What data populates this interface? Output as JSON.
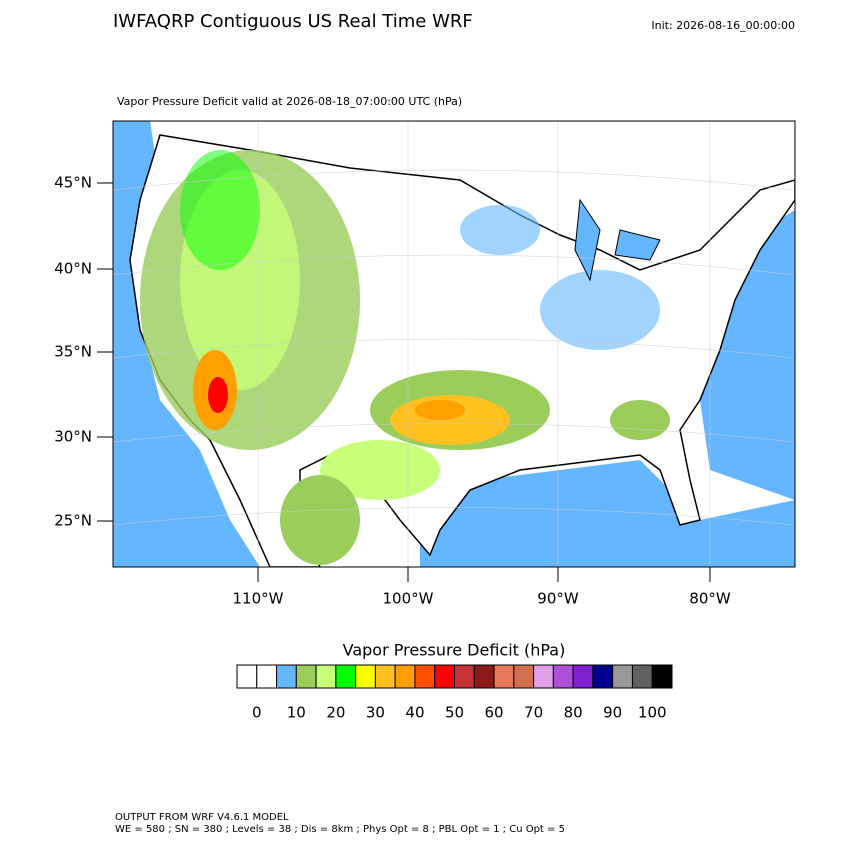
{
  "header": {
    "title": "IWFAQRP Contiguous US Real Time WRF",
    "init": "Init: 2026-08-16_00:00:00"
  },
  "map": {
    "subtitle": "Vapor Pressure Deficit valid at 2026-08-18_07:00:00 UTC   (hPa)",
    "lat_labels": [
      "45°N",
      "40°N",
      "35°N",
      "30°N",
      "25°N"
    ],
    "lon_labels": [
      "110°W",
      "100°W",
      "90°W",
      "80°W"
    ]
  },
  "colorbar": {
    "title": "Vapor Pressure Deficit  (hPa)",
    "colors": [
      "#ffffff",
      "#ffffff",
      "#63b6ff",
      "#9acd5a",
      "#c8ff78",
      "#00ff00",
      "#ffff00",
      "#ffc020",
      "#ffa000",
      "#ff5000",
      "#ff0000",
      "#c83232",
      "#8b1a1a",
      "#e8785a",
      "#d2704e",
      "#e0a0e8",
      "#b050d8",
      "#8020d0",
      "#000090",
      "#999999",
      "#606060",
      "#000000"
    ],
    "ticks": [
      0,
      10,
      20,
      30,
      40,
      50,
      60,
      70,
      80,
      90,
      100
    ]
  },
  "footer": {
    "line1": "OUTPUT FROM WRF V4.6.1 MODEL",
    "line2": "WE = 580 ; SN = 380 ; Levels = 38 ; Dis = 8km ; Phys Opt = 8 ; PBL Opt = 1 ; Cu Opt = 5"
  }
}
